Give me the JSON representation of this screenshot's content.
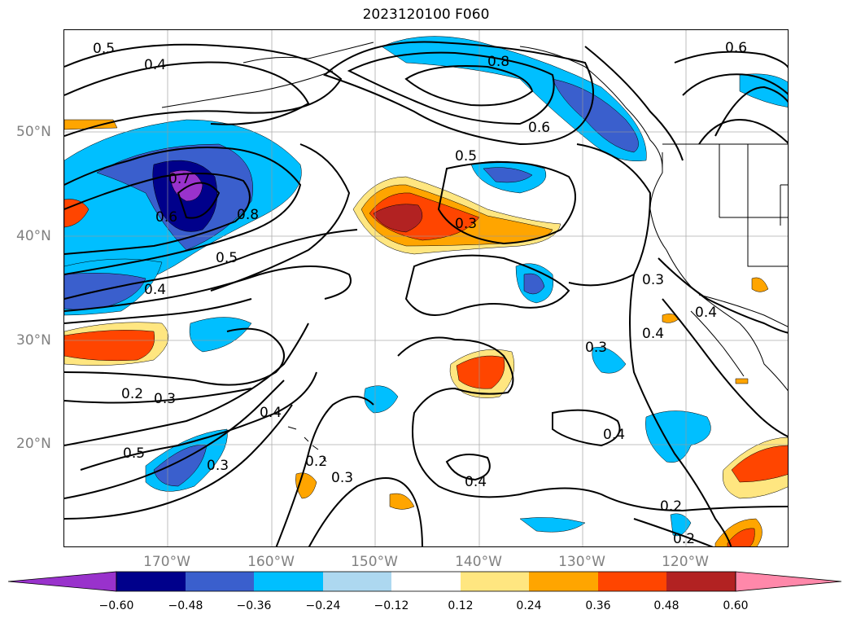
{
  "title": "2023120100 F060",
  "lat_labels": [
    "50°N",
    "40°N",
    "30°N",
    "20°N"
  ],
  "lon_labels": [
    "170°W",
    "160°W",
    "150°W",
    "140°W",
    "130°W",
    "120°W"
  ],
  "contour_labels": [
    "0.5",
    "0.4",
    "0.8",
    "0.6",
    "0.6",
    "0.5",
    "0.7",
    "0.6",
    "0.8",
    "0.5",
    "0.4",
    "0.3",
    "0.3",
    "0.4",
    "0.4",
    "0.3",
    "0.2",
    "0.3",
    "0.4",
    "0.5",
    "0.3",
    "0.2",
    "0.3",
    "0.4",
    "0.4",
    "0.2",
    "0.2"
  ],
  "colorbar": {
    "colors": [
      "#9932cc",
      "#00008b",
      "#3a5fcd",
      "#00bfff",
      "#add8f0",
      "#ffffff",
      "#ffe680",
      "#ffa500",
      "#ff4500",
      "#b22222",
      "#ff88aa"
    ],
    "ticks": [
      "−0.60",
      "−0.48",
      "−0.36",
      "−0.24",
      "−0.12",
      "0.12",
      "0.24",
      "0.36",
      "0.48",
      "0.60"
    ]
  }
}
